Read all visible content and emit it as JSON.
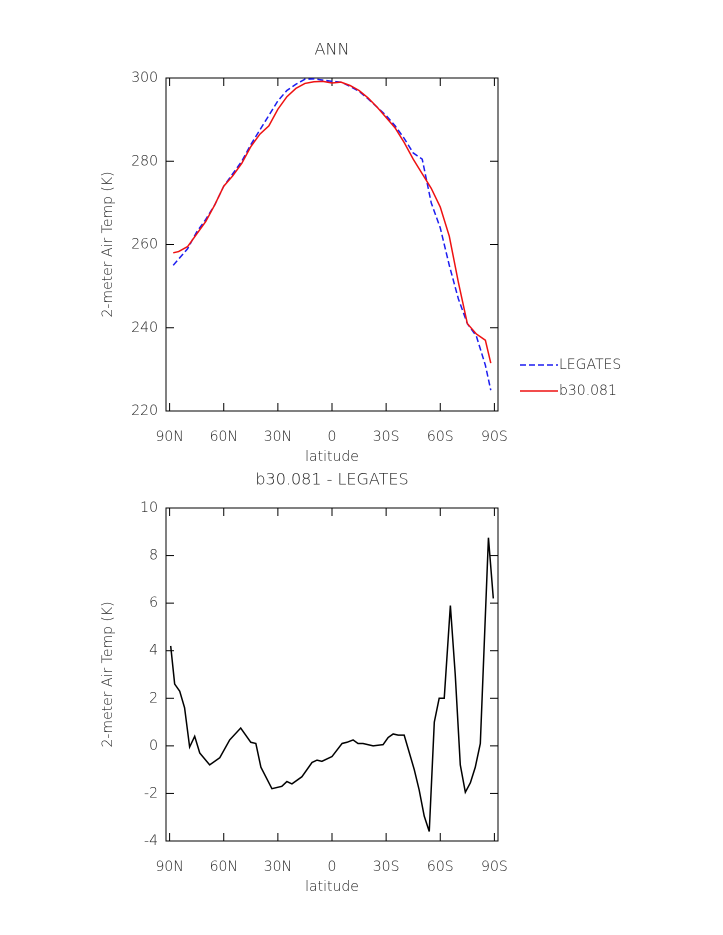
{
  "chart_data": [
    {
      "type": "line",
      "title": "ANN",
      "x_label": "latitude",
      "y_label": "2-meter Air Temp (K)",
      "x": [
        88,
        85,
        80,
        75,
        70,
        65,
        60,
        55,
        50,
        45,
        40,
        35,
        30,
        25,
        20,
        15,
        10,
        5,
        0,
        -5,
        -10,
        -15,
        -20,
        -25,
        -30,
        -35,
        -40,
        -45,
        -50,
        -55,
        -60,
        -65,
        -70,
        -75,
        -80,
        -85,
        -88
      ],
      "series": [
        {
          "name": "LEGATES",
          "color": "#1c1cf0",
          "dashed": true,
          "values": [
            255,
            256.5,
            259,
            263,
            266,
            269.5,
            274,
            277,
            280,
            284,
            287.5,
            291,
            294.5,
            297,
            298.5,
            299.7,
            299.8,
            299.5,
            299.2,
            299,
            298,
            296.8,
            295,
            293,
            291,
            288.5,
            285.5,
            282,
            280.5,
            270,
            264,
            255,
            247,
            241,
            238,
            231,
            225
          ]
        },
        {
          "name": "b30.081",
          "color": "#ee1111",
          "dashed": false,
          "values": [
            258,
            258.3,
            259.5,
            262.5,
            265.5,
            269.5,
            274,
            276.5,
            279.5,
            283.5,
            286.5,
            288.5,
            292.5,
            295.5,
            297.5,
            298.7,
            299.1,
            299.2,
            298.8,
            299,
            298.2,
            297,
            295.2,
            293,
            290.5,
            288,
            284.5,
            280.5,
            277,
            273.5,
            269,
            262,
            251,
            241,
            238.5,
            237,
            231.5
          ]
        }
      ],
      "xlim": [
        92,
        -92
      ],
      "xticks": [
        {
          "value": 90,
          "label": "90N"
        },
        {
          "value": 60,
          "label": "60N"
        },
        {
          "value": 30,
          "label": "30N"
        },
        0,
        {
          "value": -30,
          "label": "30S"
        },
        {
          "value": -60,
          "label": "60S"
        },
        {
          "value": -90,
          "label": "90S"
        }
      ],
      "ylim": [
        220,
        300
      ],
      "yticks": [
        220,
        240,
        260,
        280,
        300
      ],
      "legend": "right"
    },
    {
      "type": "line",
      "title": "b30.081 - LEGATES",
      "x_label": "latitude",
      "y_label": "2-meter Air Temp (K)",
      "x": [
        89.4,
        87.2,
        84.4,
        81.7,
        78.9,
        76.1,
        73.3,
        67.8,
        62.2,
        56.7,
        50.6,
        45,
        42.2,
        39.4,
        33.3,
        27.8,
        25,
        22.2,
        16.7,
        11.1,
        8.3,
        5.6,
        0,
        -5.6,
        -8.3,
        -11.7,
        -14.4,
        -17.2,
        -22.8,
        -28.3,
        -31.1,
        -33.9,
        -36.7,
        -40,
        -45.6,
        -48.3,
        -51.1,
        -53.9,
        -56.7,
        -59.4,
        -62.2,
        -65.6,
        -68.3,
        -71.1,
        -73.9,
        -76.7,
        -79.4,
        -82.2,
        -86.7,
        -89.4
      ],
      "values": [
        4.2,
        2.6,
        2.3,
        1.6,
        -0.05,
        0.4,
        -0.3,
        -0.8,
        -0.5,
        0.25,
        0.75,
        0.15,
        0.1,
        -0.9,
        -1.8,
        -1.7,
        -1.5,
        -1.6,
        -1.3,
        -0.7,
        -0.6,
        -0.65,
        -0.45,
        0.1,
        0.15,
        0.25,
        0.1,
        0.1,
        0,
        0.05,
        0.35,
        0.5,
        0.45,
        0.45,
        -1,
        -1.85,
        -2.95,
        -3.6,
        1,
        2,
        2,
        5.9,
        3,
        -0.8,
        -1.95,
        -1.55,
        -0.9,
        0.1,
        8.75,
        6.2
      ],
      "color": "#000000",
      "xlim": [
        92,
        -92
      ],
      "xticks": [
        {
          "value": 90,
          "label": "90N"
        },
        {
          "value": 60,
          "label": "60N"
        },
        {
          "value": 30,
          "label": "30N"
        },
        0,
        {
          "value": -30,
          "label": "30S"
        },
        {
          "value": -60,
          "label": "60S"
        },
        {
          "value": -90,
          "label": "90S"
        }
      ],
      "ylim": [
        -4,
        10
      ],
      "yticks": [
        -4,
        -2,
        0,
        2,
        4,
        6,
        8,
        10
      ]
    }
  ]
}
